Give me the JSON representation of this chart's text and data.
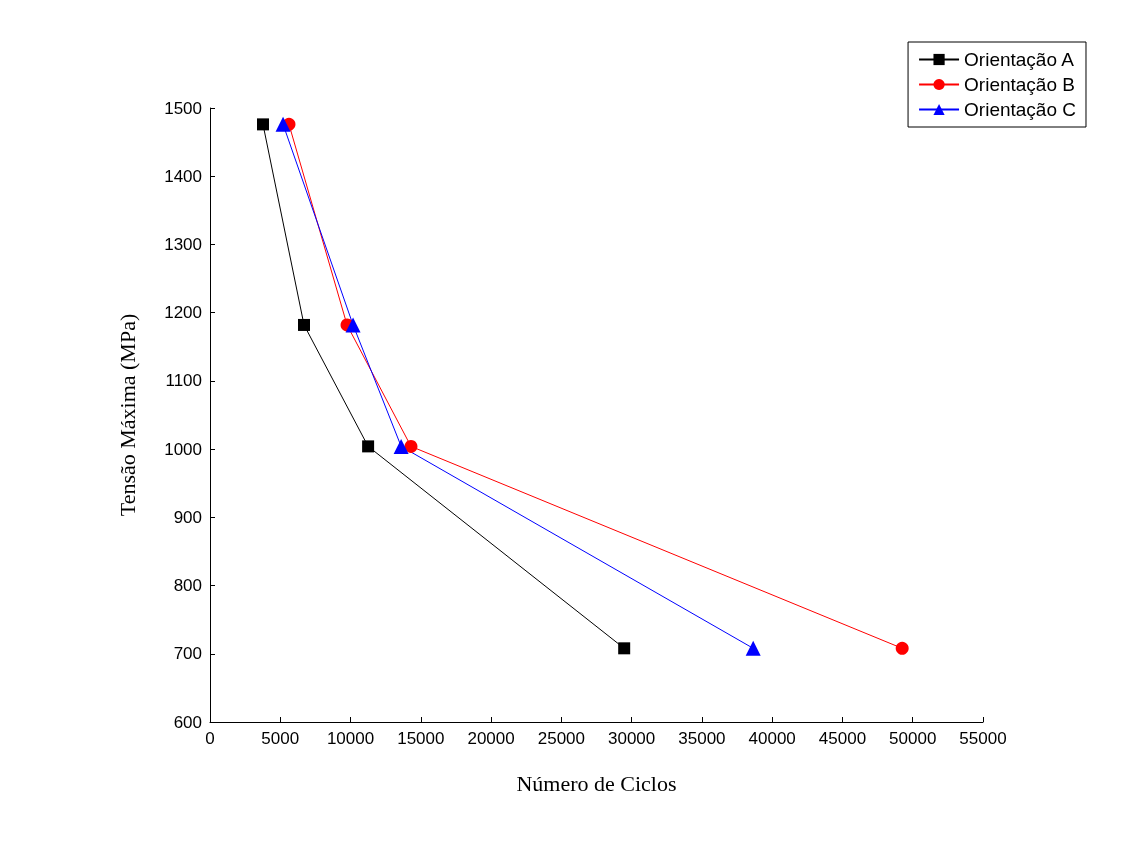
{
  "chart_data": {
    "type": "line",
    "xlabel": "Número de Ciclos",
    "ylabel": "Tensão Máxima (MPa)",
    "xlim": [
      0,
      55000
    ],
    "xticks": [
      0,
      5000,
      10000,
      15000,
      20000,
      25000,
      30000,
      35000,
      40000,
      45000,
      50000,
      55000
    ],
    "ylim": [
      600,
      1500
    ],
    "yticks": [
      600,
      700,
      800,
      900,
      1000,
      1100,
      1200,
      1300,
      1400,
      1500
    ],
    "grid": false,
    "legend": "top right",
    "line_style": "solid",
    "series": [
      {
        "name": "Orientação A",
        "color": "#000000",
        "marker": "square",
        "x": [
          3770,
          6690,
          11250,
          29470
        ],
        "values": [
          1476,
          1182,
          1004,
          708
        ]
      },
      {
        "name": "Orientação B",
        "color": "#ff0000",
        "marker": "circle",
        "x": [
          5620,
          9750,
          14300,
          49250
        ],
        "values": [
          1476,
          1182,
          1004,
          708
        ]
      },
      {
        "name": "Orientação C",
        "color": "#0000ff",
        "marker": "triangle",
        "x": [
          5200,
          10180,
          13600,
          38650
        ],
        "values": [
          1476,
          1182,
          1004,
          708
        ]
      }
    ]
  }
}
